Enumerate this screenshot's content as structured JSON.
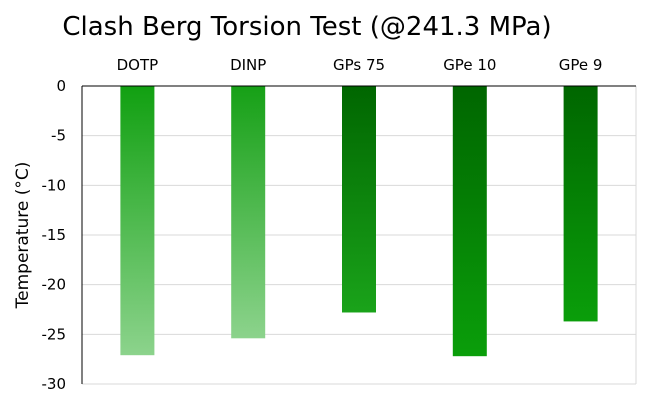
{
  "chart_data": {
    "type": "bar",
    "title": "Clash Berg Torsion Test (@241.3 MPa)",
    "xlabel": "",
    "ylabel": "Temperature (°C)",
    "categories": [
      "DOTP",
      "DINP",
      "GPs 75",
      "GPe 10",
      "GPe 9"
    ],
    "values": [
      -27.1,
      -25.4,
      -22.8,
      -27.2,
      -23.7
    ],
    "ylim": [
      -30,
      0
    ],
    "yticks": [
      0,
      -5,
      -10,
      -15,
      -20,
      -25,
      -30
    ],
    "category_axis_position": "top",
    "grid": true,
    "legend": "none",
    "bar_gradients": [
      {
        "top": "#11a011",
        "bottom": "#8cd38c"
      },
      {
        "top": "#16a016",
        "bottom": "#8cd38c"
      },
      {
        "top": "#006600",
        "bottom": "#1aa31a"
      },
      {
        "top": "#006600",
        "bottom": "#0a9e0a"
      },
      {
        "top": "#006600",
        "bottom": "#0a9e0a"
      }
    ],
    "colors": {
      "grid": "#d9d9d9",
      "axis": "#000000",
      "frame": "#bfbfbf"
    }
  }
}
